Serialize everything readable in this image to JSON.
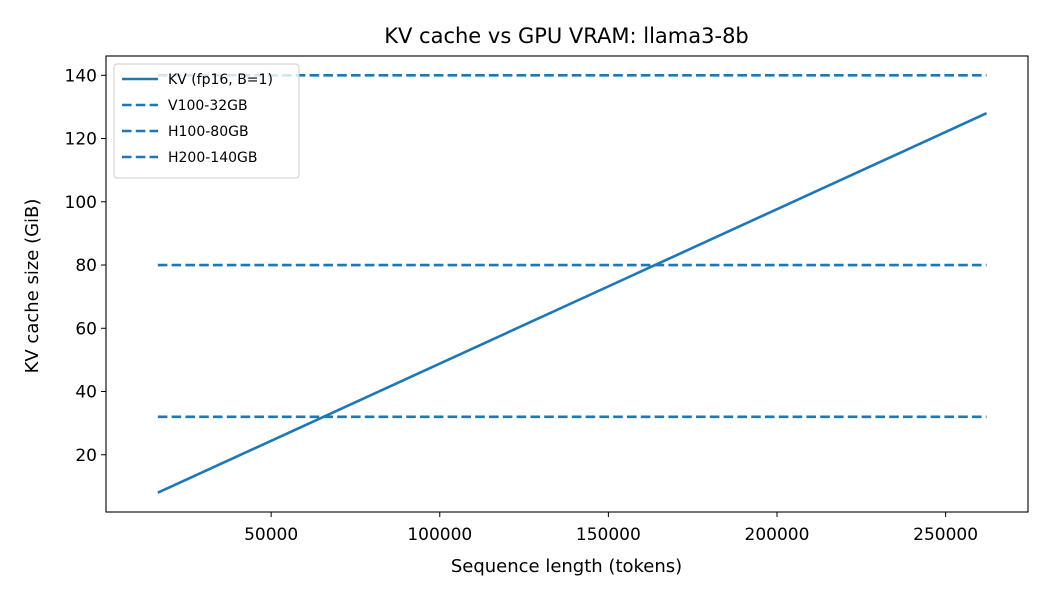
{
  "chart_data": {
    "type": "line",
    "title": "KV cache vs GPU VRAM: llama3-8b",
    "xlabel": "Sequence length (tokens)",
    "ylabel": "KV cache size (GiB)",
    "xlim": [
      1024,
      274432
    ],
    "ylim": [
      1.9,
      146.1
    ],
    "xticks": [
      50000,
      100000,
      150000,
      200000,
      250000
    ],
    "yticks": [
      20,
      40,
      60,
      80,
      100,
      120,
      140
    ],
    "grid": false,
    "legend_position": "top-left",
    "series": [
      {
        "name": "KV (fp16, B=1)",
        "style": "solid",
        "color": "#1f77b4",
        "x": [
          16384,
          262144
        ],
        "y": [
          8,
          128
        ]
      },
      {
        "name": "V100-32GB",
        "style": "dashed",
        "color": "#1f77b4",
        "x": [
          16384,
          262144
        ],
        "y": [
          32,
          32
        ]
      },
      {
        "name": "H100-80GB",
        "style": "dashed",
        "color": "#1f77b4",
        "x": [
          16384,
          262144
        ],
        "y": [
          80,
          80
        ]
      },
      {
        "name": "H200-140GB",
        "style": "dashed",
        "color": "#1f77b4",
        "x": [
          16384,
          262144
        ],
        "y": [
          140,
          140
        ]
      }
    ]
  }
}
